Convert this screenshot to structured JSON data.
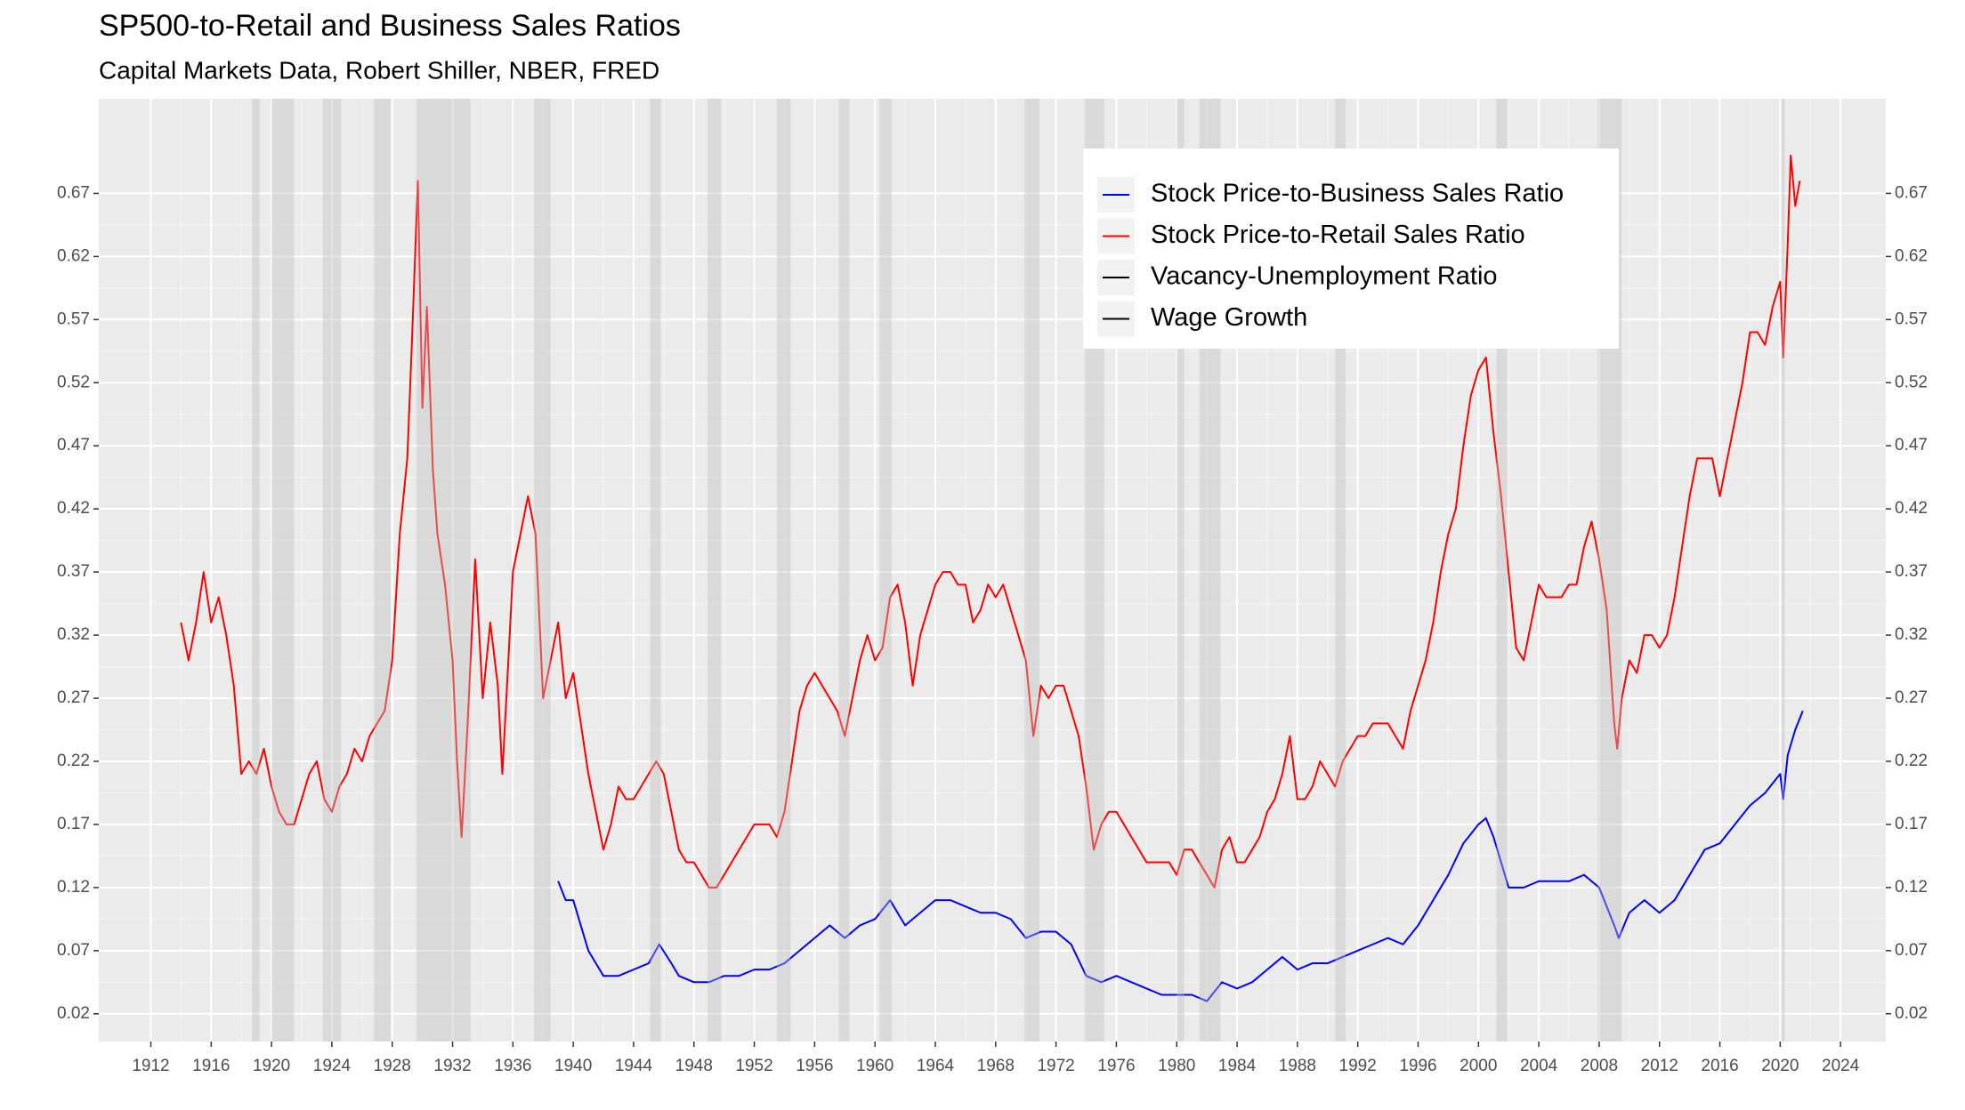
{
  "chart_data": {
    "type": "line",
    "title": "SP500-to-Retail and Business Sales Ratios",
    "subtitle": "Capital Markets Data, Robert Shiller, NBER, FRED",
    "xlim": [
      1908.55,
      2027.0
    ],
    "xticks": [
      1912,
      1916,
      1920,
      1924,
      1928,
      1932,
      1936,
      1940,
      1944,
      1948,
      1952,
      1956,
      1960,
      1964,
      1968,
      1972,
      1976,
      1980,
      1984,
      1988,
      1992,
      1996,
      2000,
      2004,
      2008,
      2012,
      2016,
      2020,
      2024
    ],
    "ylim": [
      -0.002,
      0.745
    ],
    "yticks": [
      0.02,
      0.07,
      0.12,
      0.17,
      0.22,
      0.27,
      0.32,
      0.37,
      0.42,
      0.47,
      0.52,
      0.57,
      0.62,
      0.67
    ],
    "grid": true,
    "legend_position": "top-right",
    "recessions": [
      [
        1918.7,
        1919.2
      ],
      [
        1920.0,
        1921.5
      ],
      [
        1923.4,
        1924.6
      ],
      [
        1926.8,
        1927.9
      ],
      [
        1929.6,
        1933.2
      ],
      [
        1937.4,
        1938.5
      ],
      [
        1945.1,
        1945.8
      ],
      [
        1948.9,
        1949.8
      ],
      [
        1953.5,
        1954.4
      ],
      [
        1957.6,
        1958.3
      ],
      [
        1960.3,
        1961.1
      ],
      [
        1969.9,
        1970.9
      ],
      [
        1973.9,
        1975.2
      ],
      [
        1980.0,
        1980.5
      ],
      [
        1981.5,
        1982.9
      ],
      [
        1990.5,
        1991.2
      ],
      [
        2001.2,
        2001.9
      ],
      [
        2007.9,
        2009.5
      ],
      [
        2020.1,
        2020.3
      ]
    ],
    "series": [
      {
        "name": "Stock Price-to-Business Sales Ratio",
        "color": "#0000ff",
        "x": [
          1939.0,
          1939.5,
          1940.0,
          1940.5,
          1941.0,
          1941.5,
          1942.0,
          1942.5,
          1943.0,
          1944.0,
          1945.0,
          1945.7,
          1946.5,
          1947.0,
          1948.0,
          1949.0,
          1950.0,
          1951.0,
          1952.0,
          1953.0,
          1954.0,
          1955.0,
          1956.0,
          1957.0,
          1958.0,
          1959.0,
          1960.0,
          1961.0,
          1962.0,
          1963.0,
          1964.0,
          1965.0,
          1966.0,
          1967.0,
          1968.0,
          1969.0,
          1970.0,
          1971.0,
          1972.0,
          1973.0,
          1974.0,
          1975.0,
          1976.0,
          1977.0,
          1978.0,
          1979.0,
          1980.0,
          1981.0,
          1982.0,
          1983.0,
          1984.0,
          1985.0,
          1986.0,
          1987.0,
          1988.0,
          1989.0,
          1990.0,
          1991.0,
          1992.0,
          1993.0,
          1994.0,
          1995.0,
          1996.0,
          1997.0,
          1998.0,
          1999.0,
          2000.0,
          2000.5,
          2001.0,
          2002.0,
          2003.0,
          2004.0,
          2005.0,
          2006.0,
          2007.0,
          2008.0,
          2009.0,
          2009.3,
          2010.0,
          2011.0,
          2012.0,
          2013.0,
          2014.0,
          2015.0,
          2016.0,
          2017.0,
          2018.0,
          2019.0,
          2020.0,
          2020.2,
          2020.5,
          2021.0,
          2021.5
        ],
        "values": [
          0.125,
          0.11,
          0.11,
          0.09,
          0.07,
          0.06,
          0.05,
          0.05,
          0.05,
          0.055,
          0.06,
          0.075,
          0.06,
          0.05,
          0.045,
          0.045,
          0.05,
          0.05,
          0.055,
          0.055,
          0.06,
          0.07,
          0.08,
          0.09,
          0.08,
          0.09,
          0.095,
          0.11,
          0.09,
          0.1,
          0.11,
          0.11,
          0.105,
          0.1,
          0.1,
          0.095,
          0.08,
          0.085,
          0.085,
          0.075,
          0.05,
          0.045,
          0.05,
          0.045,
          0.04,
          0.035,
          0.035,
          0.035,
          0.03,
          0.045,
          0.04,
          0.045,
          0.055,
          0.065,
          0.055,
          0.06,
          0.06,
          0.065,
          0.07,
          0.075,
          0.08,
          0.075,
          0.09,
          0.11,
          0.13,
          0.155,
          0.17,
          0.175,
          0.16,
          0.12,
          0.12,
          0.125,
          0.125,
          0.125,
          0.13,
          0.12,
          0.09,
          0.08,
          0.1,
          0.11,
          0.1,
          0.11,
          0.13,
          0.15,
          0.155,
          0.17,
          0.185,
          0.195,
          0.21,
          0.19,
          0.225,
          0.245,
          0.26
        ]
      },
      {
        "name": "Stock Price-to-Retail Sales Ratio",
        "color": "#ff0000",
        "x": [
          1914.0,
          1914.5,
          1915.0,
          1915.5,
          1916.0,
          1916.5,
          1917.0,
          1917.5,
          1918.0,
          1918.5,
          1919.0,
          1919.5,
          1920.0,
          1920.5,
          1921.0,
          1921.5,
          1922.0,
          1922.5,
          1923.0,
          1923.5,
          1924.0,
          1924.5,
          1925.0,
          1925.5,
          1926.0,
          1926.5,
          1927.0,
          1927.5,
          1928.0,
          1928.5,
          1929.0,
          1929.3,
          1929.7,
          1930.0,
          1930.3,
          1930.7,
          1931.0,
          1931.5,
          1932.0,
          1932.3,
          1932.6,
          1933.0,
          1933.5,
          1934.0,
          1934.5,
          1935.0,
          1935.3,
          1935.7,
          1936.0,
          1936.5,
          1937.0,
          1937.5,
          1938.0,
          1938.5,
          1939.0,
          1939.5,
          1940.0,
          1940.5,
          1941.0,
          1941.5,
          1942.0,
          1942.5,
          1943.0,
          1943.5,
          1944.0,
          1944.5,
          1945.0,
          1945.5,
          1946.0,
          1946.5,
          1947.0,
          1947.5,
          1948.0,
          1948.5,
          1949.0,
          1949.5,
          1950.0,
          1950.5,
          1951.0,
          1951.5,
          1952.0,
          1952.5,
          1953.0,
          1953.5,
          1954.0,
          1954.5,
          1955.0,
          1955.5,
          1956.0,
          1956.5,
          1957.0,
          1957.5,
          1958.0,
          1958.5,
          1959.0,
          1959.5,
          1960.0,
          1960.5,
          1961.0,
          1961.5,
          1962.0,
          1962.5,
          1963.0,
          1963.5,
          1964.0,
          1964.5,
          1965.0,
          1965.5,
          1966.0,
          1966.5,
          1967.0,
          1967.5,
          1968.0,
          1968.5,
          1969.0,
          1969.5,
          1970.0,
          1970.5,
          1971.0,
          1971.5,
          1972.0,
          1972.5,
          1973.0,
          1973.5,
          1974.0,
          1974.5,
          1975.0,
          1975.5,
          1976.0,
          1976.5,
          1977.0,
          1977.5,
          1978.0,
          1978.5,
          1979.0,
          1979.5,
          1980.0,
          1980.5,
          1981.0,
          1981.5,
          1982.0,
          1982.5,
          1983.0,
          1983.5,
          1984.0,
          1984.5,
          1985.0,
          1985.5,
          1986.0,
          1986.5,
          1987.0,
          1987.5,
          1988.0,
          1988.5,
          1989.0,
          1989.5,
          1990.0,
          1990.5,
          1991.0,
          1991.5,
          1992.0,
          1992.5,
          1993.0,
          1993.5,
          1994.0,
          1994.5,
          1995.0,
          1995.5,
          1996.0,
          1996.5,
          1997.0,
          1997.5,
          1998.0,
          1998.5,
          1999.0,
          1999.5,
          2000.0,
          2000.5,
          2001.0,
          2001.5,
          2002.0,
          2002.5,
          2003.0,
          2003.5,
          2004.0,
          2004.5,
          2005.0,
          2005.5,
          2006.0,
          2006.5,
          2007.0,
          2007.5,
          2008.0,
          2008.5,
          2009.0,
          2009.2,
          2009.5,
          2010.0,
          2010.5,
          2011.0,
          2011.5,
          2012.0,
          2012.5,
          2013.0,
          2013.5,
          2014.0,
          2014.5,
          2015.0,
          2015.5,
          2016.0,
          2016.5,
          2017.0,
          2017.5,
          2018.0,
          2018.5,
          2019.0,
          2019.5,
          2020.0,
          2020.2,
          2020.5,
          2020.7,
          2021.0,
          2021.3
        ],
        "values": [
          0.33,
          0.3,
          0.33,
          0.37,
          0.33,
          0.35,
          0.32,
          0.28,
          0.21,
          0.22,
          0.21,
          0.23,
          0.2,
          0.18,
          0.17,
          0.17,
          0.19,
          0.21,
          0.22,
          0.19,
          0.18,
          0.2,
          0.21,
          0.23,
          0.22,
          0.24,
          0.25,
          0.26,
          0.3,
          0.4,
          0.46,
          0.55,
          0.68,
          0.5,
          0.58,
          0.45,
          0.4,
          0.36,
          0.3,
          0.22,
          0.16,
          0.25,
          0.38,
          0.27,
          0.33,
          0.28,
          0.21,
          0.3,
          0.37,
          0.4,
          0.43,
          0.4,
          0.27,
          0.3,
          0.33,
          0.27,
          0.29,
          0.25,
          0.21,
          0.18,
          0.15,
          0.17,
          0.2,
          0.19,
          0.19,
          0.2,
          0.21,
          0.22,
          0.21,
          0.18,
          0.15,
          0.14,
          0.14,
          0.13,
          0.12,
          0.12,
          0.13,
          0.14,
          0.15,
          0.16,
          0.17,
          0.17,
          0.17,
          0.16,
          0.18,
          0.22,
          0.26,
          0.28,
          0.29,
          0.28,
          0.27,
          0.26,
          0.24,
          0.27,
          0.3,
          0.32,
          0.3,
          0.31,
          0.35,
          0.36,
          0.33,
          0.28,
          0.32,
          0.34,
          0.36,
          0.37,
          0.37,
          0.36,
          0.36,
          0.33,
          0.34,
          0.36,
          0.35,
          0.36,
          0.34,
          0.32,
          0.3,
          0.24,
          0.28,
          0.27,
          0.28,
          0.28,
          0.26,
          0.24,
          0.2,
          0.15,
          0.17,
          0.18,
          0.18,
          0.17,
          0.16,
          0.15,
          0.14,
          0.14,
          0.14,
          0.14,
          0.13,
          0.15,
          0.15,
          0.14,
          0.13,
          0.12,
          0.15,
          0.16,
          0.14,
          0.14,
          0.15,
          0.16,
          0.18,
          0.19,
          0.21,
          0.24,
          0.19,
          0.19,
          0.2,
          0.22,
          0.21,
          0.2,
          0.22,
          0.23,
          0.24,
          0.24,
          0.25,
          0.25,
          0.25,
          0.24,
          0.23,
          0.26,
          0.28,
          0.3,
          0.33,
          0.37,
          0.4,
          0.42,
          0.47,
          0.51,
          0.53,
          0.54,
          0.48,
          0.43,
          0.37,
          0.31,
          0.3,
          0.33,
          0.36,
          0.35,
          0.35,
          0.35,
          0.36,
          0.36,
          0.39,
          0.41,
          0.38,
          0.34,
          0.25,
          0.23,
          0.27,
          0.3,
          0.29,
          0.32,
          0.32,
          0.31,
          0.32,
          0.35,
          0.39,
          0.43,
          0.46,
          0.46,
          0.46,
          0.43,
          0.46,
          0.49,
          0.52,
          0.56,
          0.56,
          0.55,
          0.58,
          0.6,
          0.54,
          0.63,
          0.7,
          0.66,
          0.68
        ]
      },
      {
        "name": "Vacancy-Unemployment Ratio",
        "color": "#000000",
        "x": [],
        "values": []
      },
      {
        "name": "Wage Growth",
        "color": "#000000",
        "x": [],
        "values": []
      }
    ]
  }
}
